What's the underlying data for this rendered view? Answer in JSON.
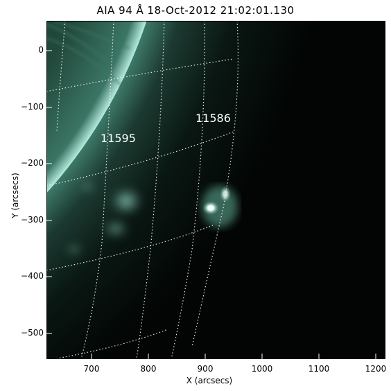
{
  "title": "AIA 94 Å 18-Oct-2012 21:02:01.130",
  "xlabel": "X (arcsecs)",
  "ylabel": "Y (arcsecs)",
  "x_ticks": [
    "700",
    "800",
    "900",
    "1000",
    "1100",
    "1200"
  ],
  "y_ticks": [
    "0",
    "−100",
    "−200",
    "−300",
    "−400",
    "−500"
  ],
  "regions": [
    {
      "label": "11595"
    },
    {
      "label": "11586"
    }
  ],
  "colors": {
    "disk": "#1e4a3b",
    "limb": "#a8e2d2",
    "space": "#020504",
    "grid": "#ffffff"
  }
}
